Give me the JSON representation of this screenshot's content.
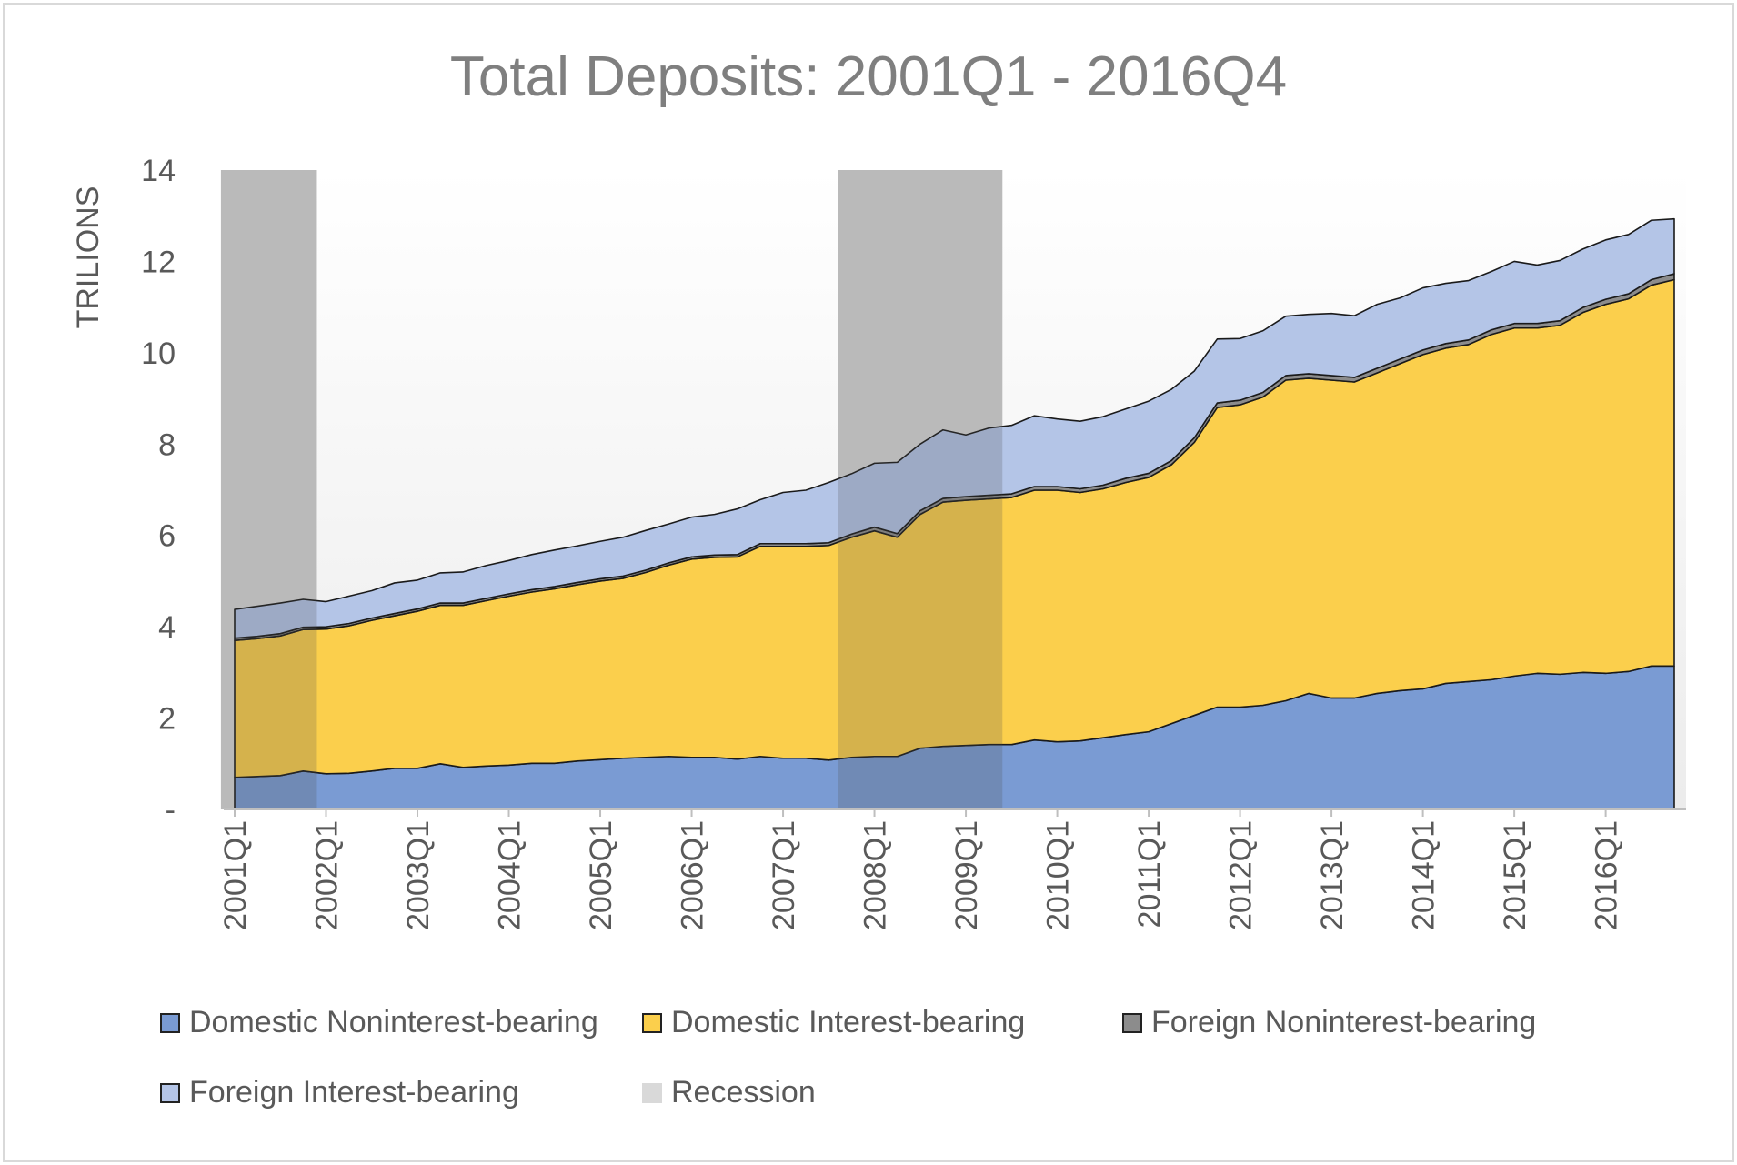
{
  "chart_data": {
    "type": "area",
    "title": "Total Deposits: 2001Q1 - 2016Q4",
    "ylabel": "TRILIONS",
    "xlabel": "",
    "ylim": [
      0,
      14
    ],
    "yticks": [
      0,
      2,
      4,
      6,
      8,
      10,
      12,
      14
    ],
    "ytick_labels": [
      "-",
      "2",
      "4",
      "6",
      "8",
      "10",
      "12",
      "14"
    ],
    "x_tick_labels": [
      "2001Q1",
      "2002Q1",
      "2003Q1",
      "2004Q1",
      "2005Q1",
      "2006Q1",
      "2007Q1",
      "2008Q1",
      "2009Q1",
      "2010Q1",
      "2011Q1",
      "2012Q1",
      "2013Q1",
      "2014Q1",
      "2015Q1",
      "2016Q1"
    ],
    "x": [
      "2001Q1",
      "2001Q2",
      "2001Q3",
      "2001Q4",
      "2002Q1",
      "2002Q2",
      "2002Q3",
      "2002Q4",
      "2003Q1",
      "2003Q2",
      "2003Q3",
      "2003Q4",
      "2004Q1",
      "2004Q2",
      "2004Q3",
      "2004Q4",
      "2005Q1",
      "2005Q2",
      "2005Q3",
      "2005Q4",
      "2006Q1",
      "2006Q2",
      "2006Q3",
      "2006Q4",
      "2007Q1",
      "2007Q2",
      "2007Q3",
      "2007Q4",
      "2008Q1",
      "2008Q2",
      "2008Q3",
      "2008Q4",
      "2009Q1",
      "2009Q2",
      "2009Q3",
      "2009Q4",
      "2010Q1",
      "2010Q2",
      "2010Q3",
      "2010Q4",
      "2011Q1",
      "2011Q2",
      "2011Q3",
      "2011Q4",
      "2012Q1",
      "2012Q2",
      "2012Q3",
      "2012Q4",
      "2013Q1",
      "2013Q2",
      "2013Q3",
      "2013Q4",
      "2014Q1",
      "2014Q2",
      "2014Q3",
      "2014Q4",
      "2015Q1",
      "2015Q2",
      "2015Q3",
      "2015Q4",
      "2016Q1",
      "2016Q2",
      "2016Q3",
      "2016Q4"
    ],
    "stacked": true,
    "series": [
      {
        "name": "Domestic Noninterest-bearing",
        "color": "#7a9bd3",
        "values": [
          0.7,
          0.72,
          0.74,
          0.84,
          0.78,
          0.79,
          0.84,
          0.9,
          0.9,
          1.0,
          0.92,
          0.95,
          0.97,
          1.01,
          1.01,
          1.06,
          1.09,
          1.12,
          1.14,
          1.16,
          1.14,
          1.14,
          1.1,
          1.16,
          1.12,
          1.12,
          1.08,
          1.14,
          1.16,
          1.16,
          1.34,
          1.38,
          1.4,
          1.42,
          1.42,
          1.52,
          1.48,
          1.5,
          1.57,
          1.64,
          1.7,
          1.88,
          2.06,
          2.24,
          2.24,
          2.28,
          2.38,
          2.54,
          2.44,
          2.44,
          2.54,
          2.6,
          2.64,
          2.76,
          2.8,
          2.84,
          2.92,
          2.98,
          2.96,
          3.0,
          2.98,
          3.02,
          3.14,
          3.14
        ]
      },
      {
        "name": "Domestic Interest-bearing",
        "color": "#fbcf4c",
        "values": [
          3.0,
          3.02,
          3.06,
          3.1,
          3.17,
          3.23,
          3.3,
          3.34,
          3.44,
          3.47,
          3.55,
          3.62,
          3.7,
          3.75,
          3.82,
          3.86,
          3.91,
          3.94,
          4.05,
          4.19,
          4.34,
          4.38,
          4.43,
          4.6,
          4.64,
          4.64,
          4.7,
          4.82,
          4.94,
          4.8,
          5.12,
          5.35,
          5.37,
          5.38,
          5.41,
          5.47,
          5.51,
          5.44,
          5.45,
          5.52,
          5.57,
          5.67,
          5.98,
          6.56,
          6.62,
          6.75,
          7.02,
          6.9,
          6.96,
          6.92,
          7.02,
          7.16,
          7.32,
          7.34,
          7.38,
          7.56,
          7.62,
          7.56,
          7.64,
          7.88,
          8.08,
          8.16,
          8.34,
          8.46
        ]
      },
      {
        "name": "Foreign Noninterest-bearing",
        "color": "#8c8c8c",
        "values": [
          0.05,
          0.05,
          0.05,
          0.05,
          0.05,
          0.05,
          0.05,
          0.05,
          0.05,
          0.05,
          0.05,
          0.05,
          0.05,
          0.05,
          0.05,
          0.05,
          0.05,
          0.05,
          0.05,
          0.05,
          0.05,
          0.05,
          0.05,
          0.06,
          0.06,
          0.06,
          0.06,
          0.07,
          0.08,
          0.08,
          0.08,
          0.08,
          0.08,
          0.08,
          0.08,
          0.08,
          0.08,
          0.08,
          0.08,
          0.09,
          0.09,
          0.09,
          0.1,
          0.1,
          0.1,
          0.1,
          0.1,
          0.1,
          0.1,
          0.1,
          0.1,
          0.1,
          0.1,
          0.1,
          0.1,
          0.1,
          0.1,
          0.1,
          0.1,
          0.11,
          0.11,
          0.11,
          0.12,
          0.13
        ]
      },
      {
        "name": "Foreign Interest-bearing",
        "color": "#b4c5e7",
        "values": [
          0.63,
          0.66,
          0.67,
          0.61,
          0.55,
          0.6,
          0.6,
          0.67,
          0.63,
          0.66,
          0.68,
          0.72,
          0.73,
          0.77,
          0.8,
          0.8,
          0.82,
          0.85,
          0.87,
          0.85,
          0.87,
          0.89,
          1.0,
          0.96,
          1.12,
          1.17,
          1.32,
          1.32,
          1.4,
          1.56,
          1.46,
          1.5,
          1.35,
          1.47,
          1.5,
          1.55,
          1.48,
          1.48,
          1.5,
          1.52,
          1.58,
          1.56,
          1.46,
          1.4,
          1.35,
          1.35,
          1.3,
          1.3,
          1.36,
          1.35,
          1.4,
          1.34,
          1.36,
          1.32,
          1.3,
          1.28,
          1.36,
          1.28,
          1.32,
          1.28,
          1.3,
          1.3,
          1.3,
          1.2
        ]
      }
    ],
    "recessions": [
      [
        "2001Q1",
        "2001Q4"
      ],
      [
        "2007Q4",
        "2009Q2"
      ]
    ],
    "recession_color": "#d9d9d9",
    "legend": {
      "position": "bottom",
      "items": [
        {
          "label": "Domestic Noninterest-bearing",
          "color": "#7a9bd3"
        },
        {
          "label": "Domestic Interest-bearing",
          "color": "#fbcf4c"
        },
        {
          "label": "Foreign Noninterest-bearing",
          "color": "#8c8c8c"
        },
        {
          "label": "Foreign Interest-bearing",
          "color": "#b4c5e7"
        },
        {
          "label": "Recession",
          "color": "#d9d9d9"
        }
      ]
    },
    "grid": false
  }
}
